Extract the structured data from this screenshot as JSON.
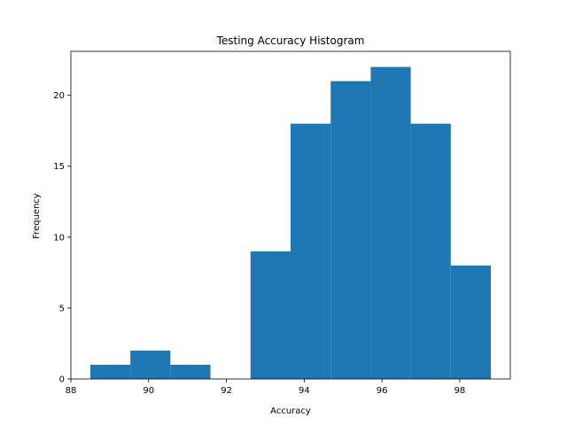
{
  "chart_data": {
    "type": "bar",
    "title": "Testing Accuracy Histogram",
    "xlabel": "Accuracy",
    "ylabel": "Frequency",
    "bin_edges": [
      88.5,
      89.53,
      90.56,
      91.59,
      92.62,
      93.65,
      94.68,
      95.71,
      96.74,
      97.77,
      98.8
    ],
    "values": [
      1,
      2,
      1,
      0,
      9,
      18,
      21,
      22,
      18,
      8
    ],
    "xlim": [
      88.0,
      99.3
    ],
    "ylim": [
      0,
      23.1
    ],
    "xticks": [
      88,
      90,
      92,
      94,
      96,
      98
    ],
    "yticks": [
      0,
      5,
      10,
      15,
      20
    ],
    "bar_color": "#1f77b4",
    "grid": false,
    "legend": "none"
  }
}
